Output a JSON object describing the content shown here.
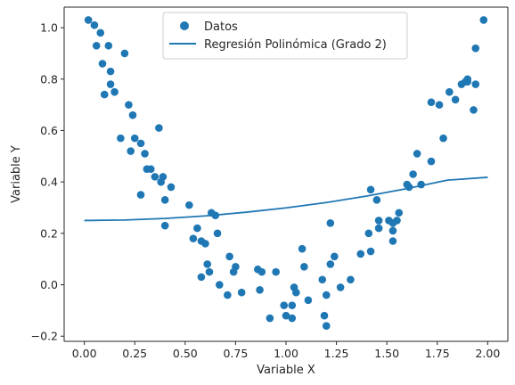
{
  "chart_data": {
    "type": "scatter",
    "xlabel": "Variable X",
    "ylabel": "Variable Y",
    "xlim": [
      -0.1,
      2.1
    ],
    "ylim": [
      -0.22,
      1.08
    ],
    "xticks": [
      "0.00",
      "0.25",
      "0.50",
      "0.75",
      "1.00",
      "1.25",
      "1.50",
      "1.75",
      "2.00"
    ],
    "yticks": [
      "−0.2",
      "0.0",
      "0.2",
      "0.4",
      "0.6",
      "0.8",
      "1.0"
    ],
    "grid": false,
    "legend_position": "top-center",
    "series": [
      {
        "name": "Datos",
        "kind": "scatter",
        "color": "#1f77b4",
        "points": [
          [
            0.02,
            1.03
          ],
          [
            0.05,
            1.01
          ],
          [
            0.06,
            0.93
          ],
          [
            0.08,
            0.98
          ],
          [
            0.09,
            0.86
          ],
          [
            0.1,
            0.74
          ],
          [
            0.12,
            0.93
          ],
          [
            0.13,
            0.83
          ],
          [
            0.13,
            0.78
          ],
          [
            0.15,
            0.75
          ],
          [
            0.2,
            0.9
          ],
          [
            0.18,
            0.57
          ],
          [
            0.22,
            0.7
          ],
          [
            0.23,
            0.52
          ],
          [
            0.24,
            0.66
          ],
          [
            0.25,
            0.57
          ],
          [
            0.28,
            0.55
          ],
          [
            0.3,
            0.51
          ],
          [
            0.31,
            0.45
          ],
          [
            0.33,
            0.45
          ],
          [
            0.35,
            0.42
          ],
          [
            0.37,
            0.61
          ],
          [
            0.38,
            0.4
          ],
          [
            0.39,
            0.42
          ],
          [
            0.28,
            0.35
          ],
          [
            0.4,
            0.33
          ],
          [
            0.4,
            0.23
          ],
          [
            0.43,
            0.38
          ],
          [
            0.52,
            0.31
          ],
          [
            0.54,
            0.18
          ],
          [
            0.56,
            0.22
          ],
          [
            0.58,
            0.03
          ],
          [
            0.58,
            0.17
          ],
          [
            0.6,
            0.16
          ],
          [
            0.61,
            0.08
          ],
          [
            0.62,
            0.05
          ],
          [
            0.63,
            0.28
          ],
          [
            0.65,
            0.27
          ],
          [
            0.66,
            0.2
          ],
          [
            0.67,
            0.0
          ],
          [
            0.71,
            -0.04
          ],
          [
            0.72,
            0.11
          ],
          [
            0.74,
            0.05
          ],
          [
            0.75,
            0.07
          ],
          [
            0.78,
            -0.03
          ],
          [
            0.86,
            0.06
          ],
          [
            0.87,
            -0.02
          ],
          [
            0.88,
            0.05
          ],
          [
            0.92,
            -0.13
          ],
          [
            0.95,
            0.05
          ],
          [
            0.99,
            -0.08
          ],
          [
            1.0,
            -0.12
          ],
          [
            1.03,
            -0.08
          ],
          [
            1.03,
            -0.13
          ],
          [
            1.04,
            -0.01
          ],
          [
            1.05,
            -0.03
          ],
          [
            1.08,
            0.14
          ],
          [
            1.09,
            0.07
          ],
          [
            1.11,
            -0.06
          ],
          [
            1.18,
            0.02
          ],
          [
            1.2,
            -0.04
          ],
          [
            1.19,
            -0.12
          ],
          [
            1.2,
            -0.16
          ],
          [
            1.22,
            0.24
          ],
          [
            1.22,
            0.08
          ],
          [
            1.24,
            0.11
          ],
          [
            1.27,
            -0.01
          ],
          [
            1.32,
            0.02
          ],
          [
            1.37,
            0.12
          ],
          [
            1.41,
            0.2
          ],
          [
            1.42,
            0.13
          ],
          [
            1.42,
            0.37
          ],
          [
            1.45,
            0.33
          ],
          [
            1.46,
            0.25
          ],
          [
            1.46,
            0.22
          ],
          [
            1.51,
            0.25
          ],
          [
            1.53,
            0.21
          ],
          [
            1.53,
            0.17
          ],
          [
            1.53,
            0.24
          ],
          [
            1.55,
            0.25
          ],
          [
            1.56,
            0.28
          ],
          [
            1.6,
            0.39
          ],
          [
            1.61,
            0.38
          ],
          [
            1.63,
            0.43
          ],
          [
            1.65,
            0.51
          ],
          [
            1.67,
            0.39
          ],
          [
            1.72,
            0.71
          ],
          [
            1.72,
            0.48
          ],
          [
            1.76,
            0.7
          ],
          [
            1.78,
            0.57
          ],
          [
            1.81,
            0.75
          ],
          [
            1.84,
            0.72
          ],
          [
            1.87,
            0.78
          ],
          [
            1.89,
            0.79
          ],
          [
            1.9,
            0.79
          ],
          [
            1.9,
            0.8
          ],
          [
            1.93,
            0.68
          ],
          [
            1.94,
            0.92
          ],
          [
            1.94,
            0.78
          ],
          [
            1.98,
            1.03
          ]
        ]
      },
      {
        "name": "Regresión Polinómica (Grado 2)",
        "kind": "line",
        "color": "#1f77b4",
        "points": [
          [
            0.0,
            0.25
          ],
          [
            0.2,
            0.252
          ],
          [
            0.4,
            0.258
          ],
          [
            0.6,
            0.268
          ],
          [
            0.8,
            0.282
          ],
          [
            1.0,
            0.299
          ],
          [
            1.2,
            0.32
          ],
          [
            1.4,
            0.345
          ],
          [
            1.6,
            0.374
          ],
          [
            1.8,
            0.407
          ],
          [
            2.0,
            0.418
          ]
        ]
      }
    ]
  }
}
